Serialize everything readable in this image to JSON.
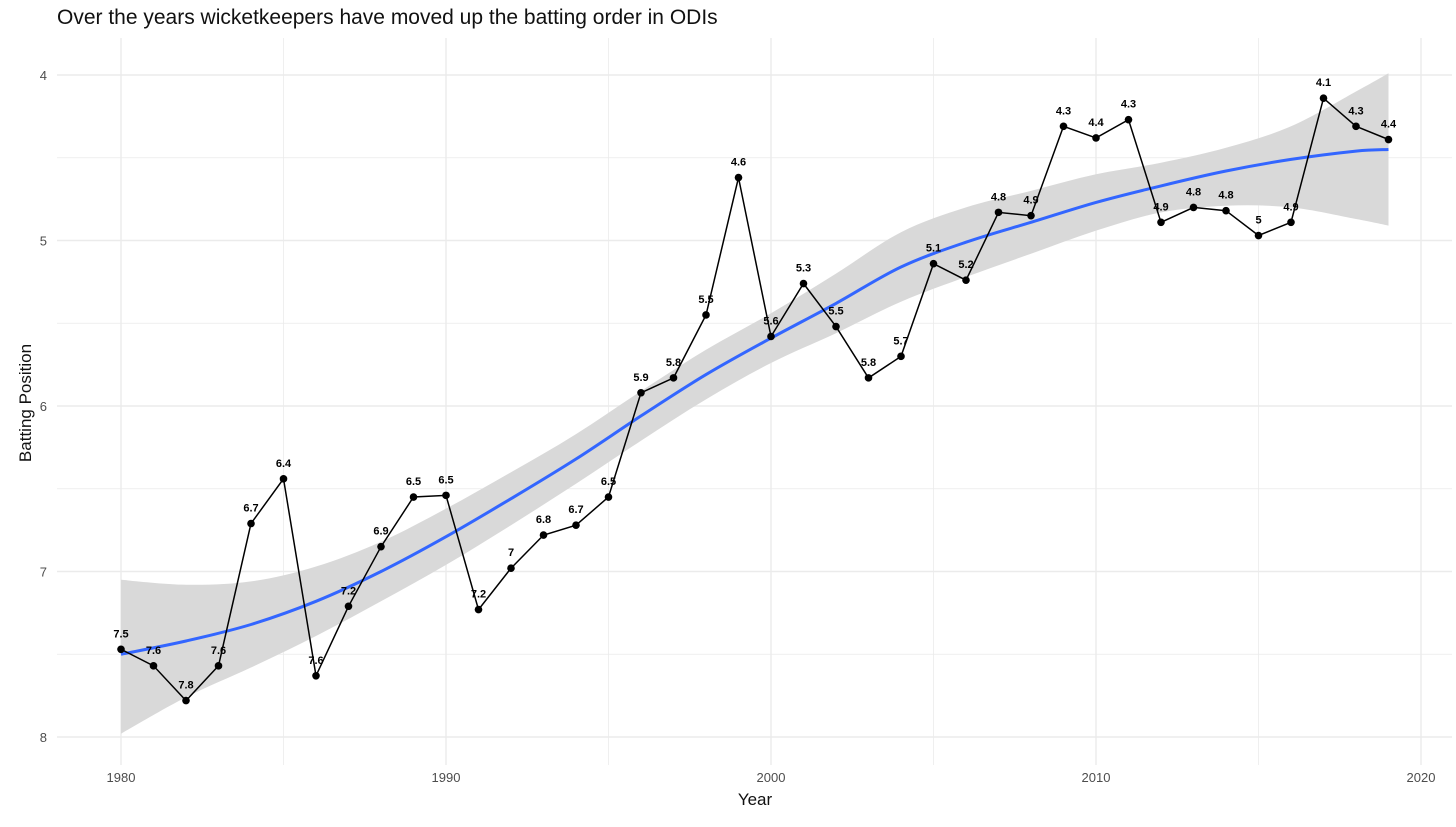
{
  "title": "Over the years wicketkeepers have moved up the batting order in ODIs",
  "chart_data": {
    "type": "line",
    "title": "Over the years wicketkeepers have moved up the batting order in ODIs",
    "xlabel": "Year",
    "ylabel": "Batting Position",
    "x_ticks": [
      "1980",
      "1990",
      "2000",
      "2010",
      "2020"
    ],
    "y_ticks": [
      "4",
      "5",
      "6",
      "7",
      "8"
    ],
    "xlim": [
      1978,
      2021
    ],
    "ylim": [
      8.2,
      3.8
    ],
    "y_reversed": true,
    "grid": true,
    "colors": {
      "points": "#000000",
      "line": "#000000",
      "trend": "#3366ff",
      "band": "#d9d9d9",
      "grid": "#ebebeb"
    },
    "series": [
      {
        "type": "line+points",
        "x": [
          1980,
          1981,
          1982,
          1983,
          1984,
          1985,
          1986,
          1987,
          1988,
          1989,
          1990,
          1991,
          1992,
          1993,
          1994,
          1995,
          1996,
          1997,
          1998,
          1999,
          2000,
          2001,
          2002,
          2003,
          2004,
          2005,
          2006,
          2007,
          2008,
          2009,
          2010,
          2011,
          2012,
          2013,
          2014,
          2015,
          2016,
          2017,
          2018,
          2019
        ],
        "y": [
          7.47,
          7.57,
          7.78,
          7.57,
          6.71,
          6.44,
          7.63,
          7.21,
          6.85,
          6.55,
          6.54,
          7.23,
          6.98,
          6.78,
          6.72,
          6.55,
          5.92,
          5.83,
          5.45,
          4.62,
          5.58,
          5.26,
          5.52,
          5.83,
          5.7,
          5.14,
          5.24,
          4.83,
          4.85,
          4.31,
          4.38,
          4.27,
          4.89,
          4.8,
          4.82,
          4.97,
          4.89,
          4.14,
          4.31,
          4.39
        ],
        "labels": [
          "7.5",
          "7.6",
          "7.8",
          "7.6",
          "6.7",
          "6.4",
          "7.6",
          "7.2",
          "6.9",
          "6.5",
          "6.5",
          "7.2",
          "7",
          "6.8",
          "6.7",
          "6.5",
          "5.9",
          "5.8",
          "5.5",
          "4.6",
          "5.6",
          "5.3",
          "5.5",
          "5.8",
          "5.7",
          "5.1",
          "5.2",
          "4.8",
          "4.9",
          "4.3",
          "4.4",
          "4.3",
          "4.9",
          "4.8",
          "4.8",
          "5",
          "4.9",
          "4.1",
          "4.3",
          "4.4"
        ]
      },
      {
        "type": "smooth-trend",
        "x": [
          1980,
          1982,
          1984,
          1986,
          1988,
          1990,
          1992,
          1994,
          1996,
          1998,
          2000,
          2002,
          2004,
          2006,
          2008,
          2010,
          2012,
          2014,
          2016,
          2018,
          2019
        ],
        "y": [
          7.5,
          7.42,
          7.32,
          7.18,
          7.0,
          6.79,
          6.56,
          6.32,
          6.06,
          5.81,
          5.59,
          5.38,
          5.16,
          5.01,
          4.89,
          4.77,
          4.67,
          4.58,
          4.51,
          4.46,
          4.45
        ],
        "ci_lower": [
          7.05,
          7.08,
          7.06,
          6.97,
          6.82,
          6.62,
          6.4,
          6.17,
          5.91,
          5.66,
          5.44,
          5.2,
          4.95,
          4.8,
          4.7,
          4.6,
          4.53,
          4.44,
          4.31,
          4.1,
          3.99
        ],
        "ci_upper": [
          7.98,
          7.76,
          7.58,
          7.39,
          7.18,
          6.96,
          6.72,
          6.47,
          6.21,
          5.96,
          5.74,
          5.56,
          5.37,
          5.22,
          5.08,
          4.94,
          4.83,
          4.79,
          4.8,
          4.87,
          4.91
        ]
      }
    ]
  }
}
